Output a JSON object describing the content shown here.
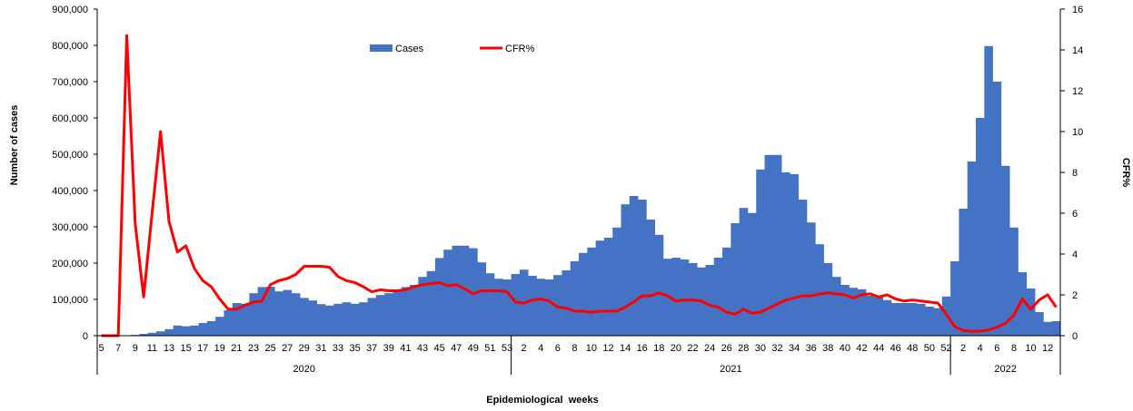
{
  "chart_data": {
    "type": "bar+line",
    "xlabel": "Epidemiological  weeks",
    "ylabel": "Number of cases",
    "y2label": "CFR%",
    "ylim": [
      0,
      900000
    ],
    "y2lim": [
      0,
      16
    ],
    "yticks": [
      "0",
      "100,000",
      "200,000",
      "300,000",
      "400,000",
      "500,000",
      "600,000",
      "700,000",
      "800,000",
      "900,000"
    ],
    "y2ticks": [
      "0",
      "2",
      "4",
      "6",
      "8",
      "10",
      "12",
      "14",
      "16"
    ],
    "legend": {
      "position": "top-center",
      "cases_label": "Cases",
      "cfr_label": "CFR%"
    },
    "colors": {
      "cases": "#4472C4",
      "cfr": "#FF0000"
    },
    "years": [
      {
        "year": "2020",
        "weeks": [
          5,
          6,
          7,
          8,
          9,
          10,
          11,
          12,
          13,
          14,
          15,
          16,
          17,
          18,
          19,
          20,
          21,
          22,
          23,
          24,
          25,
          26,
          27,
          28,
          29,
          30,
          31,
          32,
          33,
          34,
          35,
          36,
          37,
          38,
          39,
          40,
          41,
          42,
          43,
          44,
          45,
          46,
          47,
          48,
          49,
          50,
          51,
          52,
          53
        ],
        "cases": [
          0,
          0,
          0,
          1000,
          2000,
          5000,
          8000,
          12000,
          18000,
          28000,
          26000,
          28000,
          35000,
          40000,
          52000,
          70000,
          90000,
          88000,
          117000,
          134000,
          135000,
          122000,
          126000,
          117000,
          104000,
          97000,
          87000,
          83000,
          88000,
          92000,
          88000,
          92000,
          104000,
          112000,
          117000,
          125000,
          134000,
          140000,
          162000,
          178000,
          214000,
          237000,
          248000,
          248000,
          241000,
          202000,
          172000,
          157000,
          155000
        ],
        "cfr": [
          0,
          0,
          0,
          14.7,
          5.5,
          1.9,
          6.0,
          10.0,
          5.6,
          4.1,
          4.4,
          3.3,
          2.7,
          2.4,
          1.8,
          1.3,
          1.3,
          1.5,
          1.65,
          1.7,
          2.5,
          2.7,
          2.8,
          3.0,
          3.4,
          3.4,
          3.4,
          3.35,
          2.9,
          2.7,
          2.6,
          2.4,
          2.15,
          2.25,
          2.2,
          2.2,
          2.25,
          2.4,
          2.5,
          2.55,
          2.6,
          2.45,
          2.5,
          2.3,
          2.05,
          2.2,
          2.2,
          2.2,
          2.15
        ],
        "label_parity": 1
      },
      {
        "year": "2021",
        "weeks": [
          1,
          2,
          3,
          4,
          5,
          6,
          7,
          8,
          9,
          10,
          11,
          12,
          13,
          14,
          15,
          16,
          17,
          18,
          19,
          20,
          21,
          22,
          23,
          24,
          25,
          26,
          27,
          28,
          29,
          30,
          31,
          32,
          33,
          34,
          35,
          36,
          37,
          38,
          39,
          40,
          41,
          42,
          43,
          44,
          45,
          46,
          47,
          48,
          49,
          50,
          51,
          52
        ],
        "cases": [
          170000,
          182000,
          165000,
          157000,
          155000,
          167000,
          180000,
          205000,
          228000,
          243000,
          262000,
          270000,
          298000,
          362000,
          385000,
          375000,
          320000,
          278000,
          212000,
          215000,
          210000,
          200000,
          188000,
          195000,
          215000,
          243000,
          310000,
          352000,
          338000,
          458000,
          498000,
          498000,
          450000,
          445000,
          375000,
          312000,
          252000,
          200000,
          162000,
          140000,
          132000,
          128000,
          110000,
          105000,
          98000,
          90000,
          90000,
          90000,
          88000,
          80000,
          76000,
          108000
        ],
        "cfr": [
          1.65,
          1.6,
          1.75,
          1.8,
          1.7,
          1.4,
          1.35,
          1.2,
          1.2,
          1.15,
          1.2,
          1.2,
          1.2,
          1.4,
          1.65,
          1.95,
          1.95,
          2.1,
          1.95,
          1.7,
          1.75,
          1.75,
          1.7,
          1.5,
          1.4,
          1.15,
          1.05,
          1.3,
          1.1,
          1.15,
          1.35,
          1.55,
          1.75,
          1.85,
          1.95,
          1.95,
          2.05,
          2.1,
          2.05,
          2.0,
          1.85,
          2.0,
          2.05,
          1.9,
          2.0,
          1.8,
          1.7,
          1.75,
          1.7,
          1.65,
          1.6,
          1.05
        ],
        "label_parity": 0
      },
      {
        "year": "2022",
        "weeks": [
          1,
          2,
          3,
          4,
          5,
          6,
          7,
          8,
          9,
          10,
          11,
          12,
          13
        ],
        "cases": [
          205000,
          350000,
          480000,
          600000,
          798000,
          700000,
          468000,
          298000,
          175000,
          130000,
          65000,
          38000,
          40000
        ],
        "cfr": [
          0.45,
          0.25,
          0.22,
          0.22,
          0.28,
          0.42,
          0.6,
          1.0,
          1.8,
          1.3,
          1.75,
          2.0,
          1.4
        ],
        "label_parity": 0
      }
    ]
  }
}
